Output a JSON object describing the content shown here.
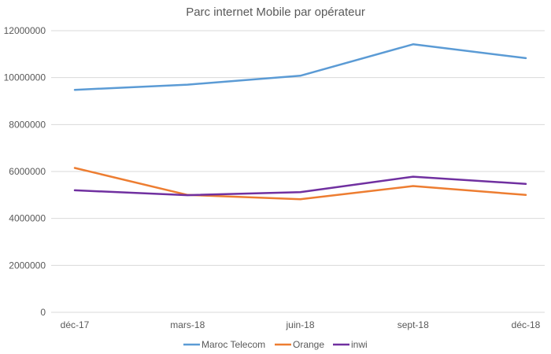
{
  "chart_data": {
    "type": "line",
    "title": "Parc internet Mobile par opérateur",
    "categories": [
      "déc-17",
      "mars-18",
      "juin-18",
      "sept-18",
      "déc-18"
    ],
    "ylim": [
      0,
      12000000
    ],
    "yticks": [
      0,
      2000000,
      4000000,
      6000000,
      8000000,
      10000000,
      12000000
    ],
    "ytick_labels": [
      "0",
      "2000000",
      "4000000",
      "6000000",
      "8000000",
      "10000000",
      "12000000"
    ],
    "grid": true,
    "legend_position": "bottom",
    "series": [
      {
        "name": "Maroc Telecom",
        "color": "#5B9BD5",
        "values": [
          9480000,
          9700000,
          10080000,
          11420000,
          10830000
        ]
      },
      {
        "name": "Orange",
        "color": "#ED7D31",
        "values": [
          6150000,
          5000000,
          4820000,
          5380000,
          5000000
        ]
      },
      {
        "name": "inwi",
        "color": "#7030A0",
        "values": [
          5200000,
          4990000,
          5120000,
          5780000,
          5470000
        ]
      }
    ]
  }
}
